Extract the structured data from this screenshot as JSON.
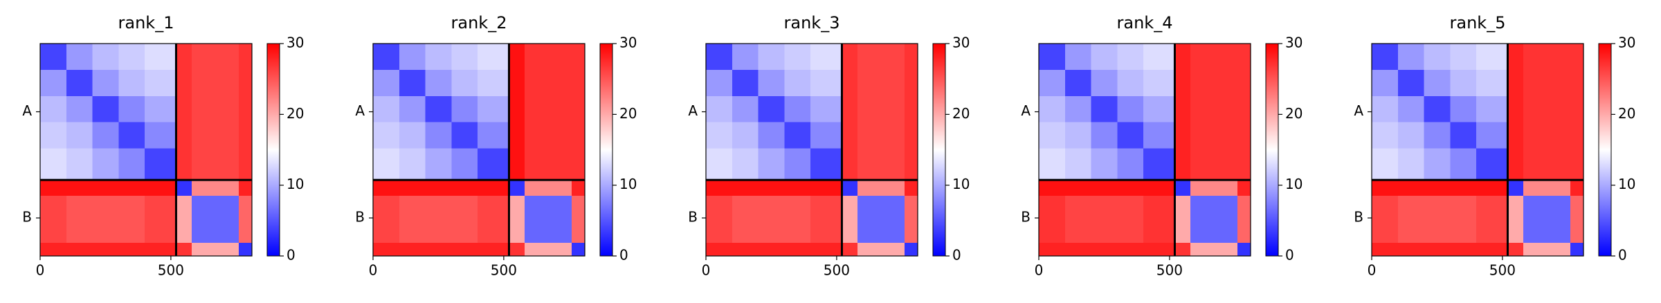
{
  "chart_data": [
    {
      "type": "heatmap",
      "title": "rank_1",
      "x_edges": [
        0,
        100,
        200,
        300,
        400,
        520,
        580,
        760,
        810
      ],
      "y_edges": [
        0,
        100,
        200,
        300,
        400,
        520,
        580,
        760,
        810
      ],
      "values": [
        [
          4,
          9,
          11,
          12,
          13,
          27,
          26,
          27
        ],
        [
          9,
          4,
          9,
          11,
          12,
          27,
          26,
          27
        ],
        [
          11,
          9,
          4,
          8,
          10,
          27,
          26,
          27
        ],
        [
          12,
          11,
          8,
          4,
          8,
          27,
          26,
          27
        ],
        [
          13,
          12,
          10,
          8,
          4,
          27,
          26,
          27
        ],
        [
          29,
          29,
          29,
          29,
          29,
          3,
          22,
          28
        ],
        [
          26,
          25,
          25,
          25,
          26,
          20,
          6,
          24
        ],
        [
          28,
          28,
          28,
          28,
          28,
          27,
          20,
          3
        ]
      ],
      "xlim": [
        0,
        810
      ],
      "ylim": [
        810,
        0
      ],
      "xticks": [
        0,
        500
      ],
      "yticks": [
        {
          "value": 260,
          "label": "A"
        },
        {
          "value": 665,
          "label": "B"
        }
      ],
      "chain_breaks": [
        520
      ],
      "clim": [
        0,
        30
      ],
      "cticks": [
        0,
        10,
        20,
        30
      ],
      "colormap": [
        "#0000ff",
        "#ffffff",
        "#ff0000"
      ]
    },
    {
      "type": "heatmap",
      "title": "rank_2",
      "x_edges": [
        0,
        100,
        200,
        300,
        400,
        520,
        580,
        760,
        810
      ],
      "y_edges": [
        0,
        100,
        200,
        300,
        400,
        520,
        580,
        760,
        810
      ],
      "values": [
        [
          4,
          9,
          11,
          12,
          13,
          29,
          27,
          27
        ],
        [
          9,
          4,
          9,
          11,
          12,
          29,
          27,
          27
        ],
        [
          11,
          9,
          4,
          8,
          10,
          29,
          27,
          27
        ],
        [
          12,
          11,
          8,
          4,
          8,
          29,
          27,
          27
        ],
        [
          13,
          12,
          10,
          8,
          4,
          29,
          27,
          27
        ],
        [
          29,
          29,
          29,
          29,
          29,
          3,
          22,
          28
        ],
        [
          26,
          25,
          25,
          25,
          26,
          20,
          6,
          24
        ],
        [
          28,
          28,
          28,
          28,
          28,
          27,
          20,
          3
        ]
      ],
      "xlim": [
        0,
        810
      ],
      "ylim": [
        810,
        0
      ],
      "xticks": [
        0,
        500
      ],
      "yticks": [
        {
          "value": 260,
          "label": "A"
        },
        {
          "value": 665,
          "label": "B"
        }
      ],
      "chain_breaks": [
        520
      ],
      "clim": [
        0,
        30
      ],
      "cticks": [
        0,
        10,
        20,
        30
      ],
      "colormap": [
        "#0000ff",
        "#ffffff",
        "#ff0000"
      ]
    },
    {
      "type": "heatmap",
      "title": "rank_3",
      "x_edges": [
        0,
        100,
        200,
        300,
        400,
        520,
        580,
        760,
        810
      ],
      "y_edges": [
        0,
        100,
        200,
        300,
        400,
        520,
        580,
        760,
        810
      ],
      "values": [
        [
          4,
          9,
          11,
          12,
          13,
          27,
          26,
          27
        ],
        [
          9,
          4,
          9,
          11,
          12,
          27,
          26,
          27
        ],
        [
          11,
          9,
          4,
          8,
          10,
          27,
          26,
          27
        ],
        [
          12,
          11,
          8,
          4,
          8,
          27,
          26,
          27
        ],
        [
          13,
          12,
          10,
          8,
          4,
          27,
          26,
          27
        ],
        [
          29,
          29,
          29,
          29,
          29,
          3,
          22,
          28
        ],
        [
          26,
          25,
          25,
          25,
          26,
          20,
          6,
          24
        ],
        [
          28,
          28,
          28,
          28,
          28,
          27,
          20,
          3
        ]
      ],
      "xlim": [
        0,
        810
      ],
      "ylim": [
        810,
        0
      ],
      "xticks": [
        0,
        500
      ],
      "yticks": [
        {
          "value": 260,
          "label": "A"
        },
        {
          "value": 665,
          "label": "B"
        }
      ],
      "chain_breaks": [
        520
      ],
      "clim": [
        0,
        30
      ],
      "cticks": [
        0,
        10,
        20,
        30
      ],
      "colormap": [
        "#0000ff",
        "#ffffff",
        "#ff0000"
      ]
    },
    {
      "type": "heatmap",
      "title": "rank_4",
      "x_edges": [
        0,
        100,
        200,
        300,
        400,
        520,
        580,
        760,
        810
      ],
      "y_edges": [
        0,
        100,
        200,
        300,
        400,
        520,
        580,
        760,
        810
      ],
      "values": [
        [
          4,
          9,
          11,
          12,
          13,
          28,
          27,
          27
        ],
        [
          9,
          4,
          9,
          11,
          12,
          28,
          27,
          27
        ],
        [
          11,
          9,
          4,
          8,
          10,
          28,
          27,
          27
        ],
        [
          12,
          11,
          8,
          4,
          8,
          28,
          27,
          27
        ],
        [
          13,
          12,
          10,
          8,
          4,
          28,
          27,
          27
        ],
        [
          29,
          29,
          29,
          29,
          29,
          3,
          22,
          28
        ],
        [
          27,
          26,
          26,
          26,
          27,
          20,
          6,
          24
        ],
        [
          28,
          28,
          28,
          28,
          28,
          27,
          20,
          3
        ]
      ],
      "xlim": [
        0,
        810
      ],
      "ylim": [
        810,
        0
      ],
      "xticks": [
        0,
        500
      ],
      "yticks": [
        {
          "value": 260,
          "label": "A"
        },
        {
          "value": 665,
          "label": "B"
        }
      ],
      "chain_breaks": [
        520
      ],
      "clim": [
        0,
        30
      ],
      "cticks": [
        0,
        10,
        20,
        30
      ],
      "colormap": [
        "#0000ff",
        "#ffffff",
        "#ff0000"
      ]
    },
    {
      "type": "heatmap",
      "title": "rank_5",
      "x_edges": [
        0,
        100,
        200,
        300,
        400,
        520,
        580,
        760,
        810
      ],
      "y_edges": [
        0,
        100,
        200,
        300,
        400,
        520,
        580,
        760,
        810
      ],
      "values": [
        [
          4,
          9,
          11,
          12,
          13,
          28,
          27,
          27
        ],
        [
          9,
          4,
          9,
          11,
          12,
          28,
          27,
          27
        ],
        [
          11,
          9,
          4,
          8,
          10,
          28,
          27,
          27
        ],
        [
          12,
          11,
          8,
          4,
          8,
          28,
          27,
          27
        ],
        [
          13,
          12,
          10,
          8,
          4,
          28,
          27,
          27
        ],
        [
          29,
          29,
          29,
          29,
          29,
          3,
          22,
          28
        ],
        [
          26,
          25,
          25,
          25,
          26,
          20,
          6,
          24
        ],
        [
          28,
          28,
          28,
          28,
          28,
          27,
          20,
          3
        ]
      ],
      "xlim": [
        0,
        810
      ],
      "ylim": [
        810,
        0
      ],
      "xticks": [
        0,
        500
      ],
      "yticks": [
        {
          "value": 260,
          "label": "A"
        },
        {
          "value": 665,
          "label": "B"
        }
      ],
      "chain_breaks": [
        520
      ],
      "clim": [
        0,
        30
      ],
      "cticks": [
        0,
        10,
        20,
        30
      ],
      "colormap": [
        "#0000ff",
        "#ffffff",
        "#ff0000"
      ]
    }
  ]
}
